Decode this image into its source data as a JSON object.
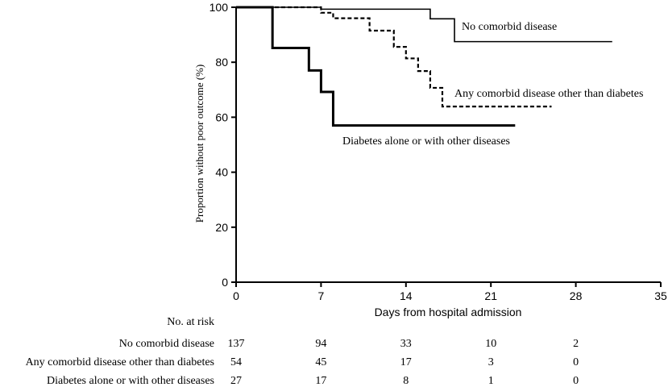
{
  "chart_data": {
    "type": "line",
    "subtype": "kaplan-meier step",
    "xlabel": "Days from hospital admission",
    "ylabel": "Proportion without poor outcome (%)",
    "xlim": [
      0,
      35
    ],
    "ylim": [
      0,
      100
    ],
    "x_ticks": [
      "0",
      "7",
      "14",
      "21",
      "28",
      "35"
    ],
    "y_ticks": [
      "0",
      "20",
      "40",
      "60",
      "80",
      "100"
    ],
    "grid": false,
    "series": [
      {
        "name": "No comorbid disease",
        "line_style": "solid-thin",
        "x": [
          0,
          7,
          16,
          18,
          31
        ],
        "y": [
          100,
          99.3,
          95.8,
          87.5,
          87.5
        ]
      },
      {
        "name": "Any comorbid disease other than diabetes",
        "line_style": "dashed",
        "x": [
          0,
          7,
          8,
          11,
          13,
          14,
          15,
          16,
          17,
          26
        ],
        "y": [
          100,
          98,
          96,
          91.5,
          85.6,
          81.4,
          76.8,
          70.7,
          63.9,
          63.9
        ]
      },
      {
        "name": "Diabetes alone or with other diseases",
        "line_style": "solid-thick",
        "x": [
          0,
          3,
          6,
          7,
          8,
          23
        ],
        "y": [
          100,
          85.2,
          77.0,
          69.2,
          57.0,
          57.0
        ]
      }
    ],
    "annotations": [
      "No comorbid disease",
      "Any comorbid disease other than diabetes",
      "Diabetes alone or with other diseases"
    ]
  },
  "risk_table": {
    "title": "No. at risk",
    "days": [
      0,
      7,
      14,
      21,
      28
    ],
    "rows": [
      {
        "label": "No comorbid disease",
        "values": [
          "137",
          "94",
          "33",
          "10",
          "2"
        ]
      },
      {
        "label": "Any comorbid disease other than diabetes",
        "values": [
          "54",
          "45",
          "17",
          "3",
          "0"
        ]
      },
      {
        "label": "Diabetes alone or with other diseases",
        "values": [
          "27",
          "17",
          "8",
          "1",
          "0"
        ]
      }
    ]
  }
}
